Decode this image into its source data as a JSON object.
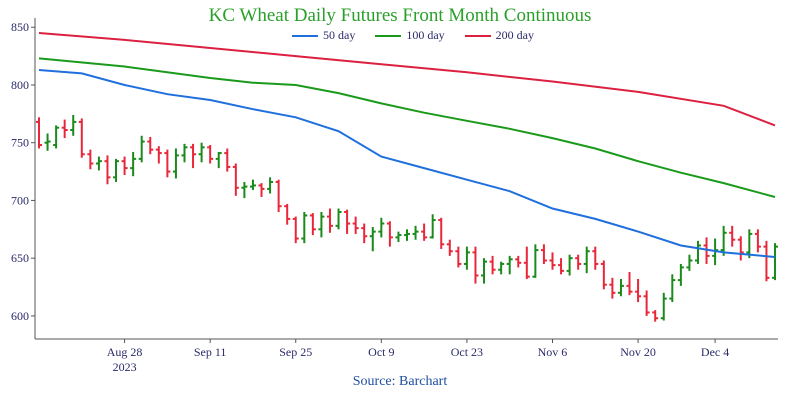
{
  "chart_data": {
    "type": "ohlc",
    "title": "KC Wheat Daily Futures Front Month Continuous",
    "source": "Source: Barchart",
    "xlabel": "",
    "ylabel": "",
    "ylim": [
      580,
      858
    ],
    "y_ticks": [
      600,
      650,
      700,
      750,
      800,
      850
    ],
    "x_ticks": [
      {
        "label": "Aug 28",
        "sublabel": "2023",
        "index": 10
      },
      {
        "label": "Sep 11",
        "sublabel": "",
        "index": 20
      },
      {
        "label": "Sep 25",
        "sublabel": "",
        "index": 30
      },
      {
        "label": "Oct 9",
        "sublabel": "",
        "index": 40
      },
      {
        "label": "Oct 23",
        "sublabel": "",
        "index": 50
      },
      {
        "label": "Nov 6",
        "sublabel": "",
        "index": 60
      },
      {
        "label": "Nov 20",
        "sublabel": "",
        "index": 70
      },
      {
        "label": "Dec 4",
        "sublabel": "",
        "index": 79
      }
    ],
    "up_color": "#1a8a1a",
    "down_color": "#e8273a",
    "ohlc": [
      [
        768,
        772,
        745,
        748
      ],
      [
        750,
        758,
        743,
        751
      ],
      [
        748,
        765,
        745,
        763
      ],
      [
        763,
        770,
        754,
        761
      ],
      [
        761,
        774,
        756,
        768
      ],
      [
        768,
        771,
        737,
        740
      ],
      [
        740,
        744,
        727,
        732
      ],
      [
        732,
        738,
        726,
        734
      ],
      [
        734,
        739,
        714,
        720
      ],
      [
        720,
        736,
        716,
        734
      ],
      [
        734,
        738,
        722,
        728
      ],
      [
        728,
        742,
        721,
        736
      ],
      [
        736,
        756,
        733,
        751
      ],
      [
        751,
        755,
        740,
        744
      ],
      [
        744,
        747,
        732,
        741
      ],
      [
        741,
        744,
        720,
        725
      ],
      [
        725,
        745,
        719,
        739
      ],
      [
        739,
        749,
        733,
        746
      ],
      [
        746,
        749,
        728,
        740
      ],
      [
        740,
        750,
        733,
        746
      ],
      [
        746,
        748,
        732,
        736
      ],
      [
        736,
        742,
        728,
        741
      ],
      [
        741,
        745,
        725,
        729
      ],
      [
        729,
        732,
        704,
        711
      ],
      [
        711,
        716,
        702,
        712
      ],
      [
        712,
        718,
        709,
        713
      ],
      [
        713,
        715,
        703,
        710
      ],
      [
        710,
        720,
        706,
        716
      ],
      [
        716,
        718,
        690,
        695
      ],
      [
        695,
        697,
        679,
        684
      ],
      [
        684,
        686,
        663,
        667
      ],
      [
        667,
        690,
        663,
        687
      ],
      [
        687,
        689,
        670,
        675
      ],
      [
        675,
        690,
        668,
        686
      ],
      [
        686,
        693,
        672,
        678
      ],
      [
        678,
        693,
        675,
        690
      ],
      [
        690,
        692,
        671,
        680
      ],
      [
        680,
        686,
        671,
        676
      ],
      [
        676,
        680,
        663,
        669
      ],
      [
        669,
        677,
        656,
        673
      ],
      [
        673,
        685,
        668,
        680
      ],
      [
        680,
        682,
        660,
        668
      ],
      [
        668,
        673,
        664,
        670
      ],
      [
        670,
        675,
        665,
        671
      ],
      [
        671,
        678,
        666,
        673
      ],
      [
        673,
        680,
        665,
        668
      ],
      [
        668,
        688,
        667,
        683
      ],
      [
        683,
        685,
        658,
        662
      ],
      [
        662,
        666,
        652,
        656
      ],
      [
        656,
        660,
        642,
        645
      ],
      [
        645,
        660,
        640,
        655
      ],
      [
        655,
        660,
        628,
        635
      ],
      [
        635,
        650,
        628,
        647
      ],
      [
        647,
        652,
        636,
        640
      ],
      [
        640,
        647,
        636,
        645
      ],
      [
        645,
        652,
        636,
        649
      ],
      [
        649,
        652,
        642,
        646
      ],
      [
        646,
        660,
        632,
        634
      ],
      [
        634,
        662,
        633,
        657
      ],
      [
        657,
        662,
        645,
        648
      ],
      [
        648,
        655,
        640,
        644
      ],
      [
        644,
        650,
        636,
        639
      ],
      [
        639,
        653,
        635,
        650
      ],
      [
        650,
        653,
        640,
        645
      ],
      [
        645,
        660,
        637,
        656
      ],
      [
        656,
        660,
        640,
        645
      ],
      [
        645,
        648,
        623,
        627
      ],
      [
        627,
        633,
        615,
        620
      ],
      [
        620,
        632,
        617,
        626
      ],
      [
        626,
        638,
        618,
        621
      ],
      [
        621,
        632,
        612,
        617
      ],
      [
        617,
        622,
        600,
        603
      ],
      [
        603,
        605,
        595,
        598
      ],
      [
        598,
        620,
        596,
        615
      ],
      [
        615,
        636,
        612,
        631
      ],
      [
        631,
        645,
        626,
        642
      ],
      [
        642,
        653,
        639,
        648
      ],
      [
        648,
        665,
        645,
        661
      ],
      [
        661,
        668,
        645,
        652
      ],
      [
        652,
        667,
        644,
        657
      ],
      [
        657,
        678,
        652,
        672
      ],
      [
        672,
        678,
        660,
        666
      ],
      [
        666,
        669,
        648,
        655
      ],
      [
        655,
        675,
        650,
        671
      ],
      [
        671,
        675,
        655,
        660
      ],
      [
        660,
        665,
        630,
        633
      ],
      [
        633,
        663,
        631,
        660
      ]
    ],
    "series": [
      {
        "name": "50 day",
        "color": "#1f6fdd",
        "points": [
          [
            0,
            813
          ],
          [
            5,
            810
          ],
          [
            10,
            800
          ],
          [
            15,
            792
          ],
          [
            20,
            787
          ],
          [
            25,
            779
          ],
          [
            30,
            772
          ],
          [
            35,
            760
          ],
          [
            40,
            738
          ],
          [
            45,
            728
          ],
          [
            50,
            718
          ],
          [
            55,
            708
          ],
          [
            60,
            693
          ],
          [
            65,
            684
          ],
          [
            70,
            673
          ],
          [
            75,
            661
          ],
          [
            80,
            655
          ],
          [
            86,
            651
          ]
        ]
      },
      {
        "name": "100 day",
        "color": "#1a9a1a",
        "points": [
          [
            0,
            823
          ],
          [
            10,
            816
          ],
          [
            20,
            806
          ],
          [
            25,
            802
          ],
          [
            30,
            800
          ],
          [
            35,
            793
          ],
          [
            40,
            784
          ],
          [
            45,
            776
          ],
          [
            50,
            769
          ],
          [
            55,
            762
          ],
          [
            60,
            754
          ],
          [
            65,
            745
          ],
          [
            70,
            734
          ],
          [
            75,
            724
          ],
          [
            80,
            715
          ],
          [
            86,
            703
          ]
        ]
      },
      {
        "name": "200 day",
        "color": "#dc2040",
        "points": [
          [
            0,
            845
          ],
          [
            10,
            839
          ],
          [
            20,
            832
          ],
          [
            30,
            825
          ],
          [
            40,
            818
          ],
          [
            50,
            811
          ],
          [
            60,
            803
          ],
          [
            70,
            794
          ],
          [
            80,
            782
          ],
          [
            86,
            765
          ]
        ]
      }
    ]
  }
}
